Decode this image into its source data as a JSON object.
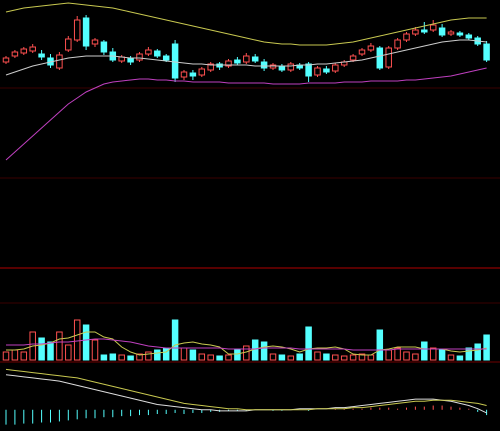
{
  "chart_data": [
    {
      "type": "candlestick",
      "ylim": [
        0,
        180
      ],
      "up_color": "#ff5050",
      "down_color": "#54ffff",
      "open": [
        118,
        124,
        127,
        129,
        126,
        122,
        112,
        130,
        140,
        162,
        136,
        138,
        128,
        119,
        122,
        120,
        126,
        129,
        124,
        136,
        103,
        107,
        105,
        110,
        116,
        114,
        120,
        118,
        123,
        118,
        112,
        114,
        110,
        115,
        116,
        105,
        111,
        109,
        115,
        120,
        126,
        130,
        132,
        113,
        132,
        140,
        146,
        150,
        150,
        152,
        146,
        147,
        145,
        142,
        136
      ],
      "close": [
        122,
        128,
        131,
        133,
        123,
        115,
        125,
        141,
        160,
        134,
        140,
        128,
        120,
        123,
        118,
        126,
        130,
        124,
        120,
        102,
        108,
        104,
        111,
        116,
        113,
        119,
        117,
        124,
        119,
        112,
        115,
        110,
        116,
        112,
        104,
        112,
        108,
        115,
        118,
        124,
        130,
        134,
        112,
        132,
        140,
        146,
        150,
        148,
        155,
        145,
        148,
        145,
        142,
        136,
        120
      ],
      "high": [
        124,
        130,
        133,
        136,
        130,
        126,
        128,
        144,
        164,
        165,
        142,
        140,
        132,
        125,
        124,
        128,
        133,
        131,
        126,
        140,
        110,
        110,
        113,
        118,
        118,
        121,
        123,
        127,
        126,
        121,
        117,
        116,
        118,
        117,
        118,
        114,
        114,
        117,
        120,
        126,
        132,
        137,
        134,
        134,
        142,
        148,
        153,
        158,
        160,
        156,
        150,
        149,
        147,
        144,
        139
      ],
      "low": [
        116,
        122,
        125,
        127,
        120,
        112,
        110,
        128,
        138,
        130,
        133,
        125,
        118,
        117,
        115,
        118,
        124,
        122,
        118,
        98,
        100,
        100,
        103,
        108,
        110,
        112,
        115,
        116,
        117,
        109,
        110,
        108,
        108,
        110,
        98,
        103,
        106,
        107,
        113,
        118,
        124,
        128,
        110,
        111,
        130,
        138,
        144,
        146,
        148,
        143,
        144,
        143,
        140,
        134,
        118
      ],
      "series": [
        {
          "color": "#c8c850",
          "values": [
            168,
            170,
            172,
            173,
            174,
            175,
            176,
            177,
            176,
            175,
            174,
            173,
            172,
            170,
            168,
            166,
            164,
            162,
            160,
            158,
            156,
            154,
            152,
            150,
            148,
            146,
            144,
            142,
            140,
            138,
            137,
            136,
            136,
            135,
            135,
            135,
            135,
            136,
            137,
            138,
            140,
            142,
            144,
            146,
            148,
            150,
            152,
            154,
            156,
            158,
            160,
            161,
            162,
            162,
            162
          ]
        },
        {
          "color": "#cccccc",
          "values": [
            105,
            108,
            111,
            114,
            116,
            118,
            120,
            122,
            123,
            124,
            124,
            124,
            124,
            123,
            122,
            122,
            121,
            120,
            119,
            118,
            117,
            116,
            116,
            115,
            115,
            115,
            115,
            115,
            114,
            114,
            114,
            114,
            114,
            115,
            115,
            116,
            116,
            117,
            118,
            119,
            120,
            122,
            124,
            126,
            128,
            130,
            132,
            134,
            136,
            138,
            139,
            140,
            140,
            139,
            138
          ]
        },
        {
          "color": "#c040c0",
          "values": [
            20,
            28,
            36,
            44,
            52,
            60,
            68,
            76,
            82,
            88,
            92,
            96,
            98,
            99,
            100,
            101,
            101,
            100,
            100,
            99,
            99,
            98,
            98,
            98,
            98,
            97,
            97,
            97,
            97,
            97,
            96,
            96,
            96,
            96,
            97,
            97,
            97,
            97,
            98,
            98,
            98,
            99,
            99,
            99,
            99,
            100,
            100,
            101,
            102,
            103,
            104,
            106,
            108,
            110,
            112
          ]
        }
      ]
    },
    {
      "type": "bar",
      "ylim": [
        0,
        50
      ],
      "values": [
        8,
        10,
        8,
        28,
        22,
        18,
        28,
        15,
        40,
        35,
        20,
        5,
        6,
        5,
        4,
        6,
        8,
        10,
        12,
        40,
        12,
        10,
        6,
        5,
        4,
        5,
        10,
        14,
        20,
        18,
        6,
        5,
        4,
        6,
        33,
        8,
        6,
        5,
        4,
        5,
        6,
        5,
        30,
        10,
        12,
        8,
        6,
        18,
        12,
        10,
        5,
        4,
        12,
        16,
        25
      ],
      "series": [
        {
          "color": "#c8c850",
          "values": [
            10,
            10,
            11,
            14,
            15,
            17,
            21,
            22,
            25,
            28,
            28,
            23,
            21,
            13,
            8,
            5,
            6,
            7,
            8,
            15,
            17,
            18,
            16,
            15,
            13,
            6,
            6,
            8,
            11,
            13,
            14,
            13,
            11,
            8,
            11,
            12,
            12,
            13,
            11,
            6,
            5,
            5,
            10,
            11,
            13,
            13,
            13,
            11,
            11,
            11,
            9,
            8,
            9,
            10,
            12
          ]
        },
        {
          "color": "#c040c0",
          "values": [
            15,
            15,
            15,
            16,
            16,
            17,
            18,
            18,
            19,
            20,
            21,
            21,
            20,
            19,
            18,
            16,
            14,
            13,
            12,
            12,
            12,
            12,
            12,
            12,
            12,
            11,
            11,
            11,
            11,
            12,
            12,
            12,
            12,
            11,
            11,
            11,
            11,
            11,
            11,
            10,
            10,
            10,
            10,
            10,
            11,
            11,
            11,
            11,
            11,
            11,
            11,
            11,
            11,
            11,
            11
          ]
        }
      ]
    },
    {
      "type": "macd",
      "ylim": [
        -20,
        45
      ],
      "up_color": "#ff5050",
      "down_color": "#54ffff",
      "values": [
        -14,
        -14,
        -13,
        -13,
        -12,
        -12,
        -11,
        -10,
        -9,
        -8,
        -8,
        -7,
        -7,
        -6,
        -6,
        -5,
        -5,
        -4,
        -4,
        -3,
        -4,
        -3,
        -3,
        -2,
        -2,
        -1,
        -1,
        -1,
        0,
        0,
        -1,
        -1,
        0,
        0,
        -1,
        0,
        0,
        1,
        1,
        1,
        1,
        2,
        2,
        2,
        1,
        2,
        3,
        3,
        4,
        4,
        3,
        2,
        1,
        -2,
        -5
      ],
      "series": [
        {
          "color": "#dddddd",
          "values": [
            33,
            32,
            31,
            30,
            29,
            28,
            27,
            25,
            23,
            21,
            19,
            17,
            15,
            13,
            11,
            9,
            7,
            5,
            4,
            3,
            2,
            1,
            0,
            0,
            -1,
            -1,
            -1,
            -1,
            0,
            0,
            0,
            0,
            0,
            1,
            1,
            1,
            1,
            2,
            2,
            3,
            4,
            5,
            6,
            7,
            8,
            9,
            10,
            10,
            10,
            9,
            8,
            6,
            4,
            1,
            -3
          ]
        },
        {
          "color": "#c8c850",
          "values": [
            38,
            37,
            36,
            35,
            34,
            33,
            32,
            31,
            30,
            28,
            26,
            24,
            22,
            20,
            18,
            16,
            14,
            12,
            10,
            8,
            6,
            5,
            4,
            3,
            2,
            1,
            1,
            0,
            0,
            0,
            0,
            0,
            0,
            0,
            0,
            1,
            1,
            1,
            1,
            2,
            2,
            3,
            4,
            5,
            6,
            7,
            8,
            8,
            9,
            9,
            9,
            8,
            7,
            6,
            4
          ]
        }
      ]
    }
  ]
}
